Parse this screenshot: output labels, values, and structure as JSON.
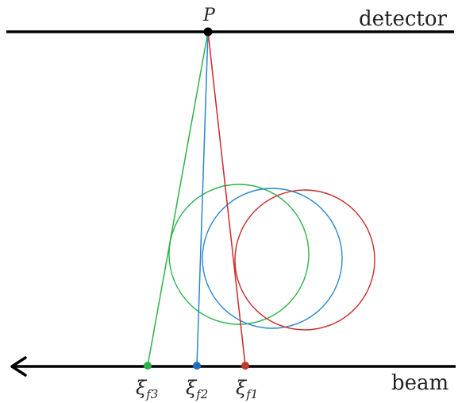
{
  "labels": {
    "point": "P",
    "detector": "detector",
    "beam": "beam"
  },
  "foci": [
    {
      "symbol": "ξ",
      "subscript": "f3",
      "color": "#2db34a"
    },
    {
      "symbol": "ξ",
      "subscript": "f2",
      "color": "#1f6fc0"
    },
    {
      "symbol": "ξ",
      "subscript": "f1",
      "color": "#c0392b"
    }
  ],
  "colors": {
    "axis": "#000000",
    "green": "#2db34a",
    "blue": "#2b86cc",
    "red": "#cc2a2a",
    "point": "#000000"
  }
}
